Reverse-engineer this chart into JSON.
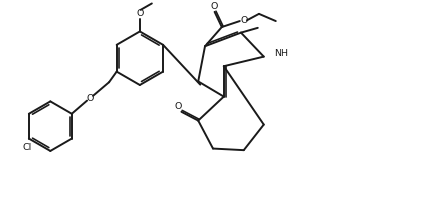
{
  "bg_color": "#ffffff",
  "line_color": "#1a1a1a",
  "line_width": 1.4,
  "figsize": [
    4.26,
    2.22
  ],
  "dpi": 100,
  "xlim": [
    0,
    10.5
  ],
  "ylim": [
    0,
    5.5
  ]
}
